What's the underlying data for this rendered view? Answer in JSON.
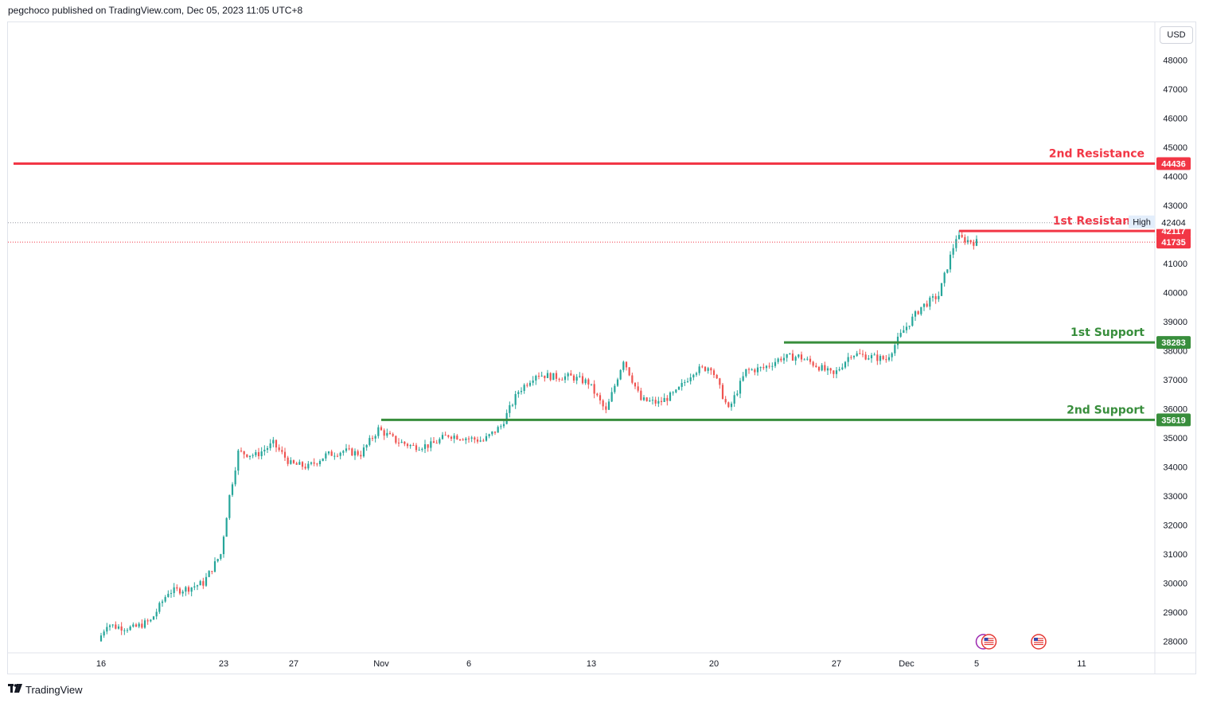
{
  "header": {
    "publisher_text": "pegchoco published on TradingView.com, Dec 05, 2023 11:05 UTC+8"
  },
  "currency_button": "USD",
  "footer": {
    "logo_text": "TradingView",
    "logo_icon": "tradingview-logo-icon"
  },
  "colors": {
    "up": "#26a69a",
    "down": "#ef5350",
    "resistance": "#f23645",
    "support": "#388e3c",
    "high_label_bg": "#e3eefb"
  },
  "chart_data": {
    "type": "candlestick",
    "title": "",
    "x_axis_ticks": [
      "16",
      "23",
      "27",
      "Nov",
      "6",
      "13",
      "20",
      "27",
      "Dec",
      "5",
      "11"
    ],
    "y_axis_ticks": [
      28000,
      29000,
      30000,
      31000,
      32000,
      33000,
      34000,
      35000,
      36000,
      37000,
      38000,
      39000,
      40000,
      41000,
      42000,
      43000,
      44000,
      45000,
      46000,
      47000,
      48000
    ],
    "ylim": [
      27600,
      49300
    ],
    "levels": [
      {
        "name": "2nd Resistance",
        "value": 44436,
        "badge": "44436",
        "kind": "resistance",
        "start_date": "2023-10-11"
      },
      {
        "name": "1st Resistance",
        "value": 42117,
        "badge": "42117",
        "kind": "resistance",
        "start_date": "2023-12-04"
      },
      {
        "name": "1st Support",
        "value": 38283,
        "badge": "38283",
        "kind": "support",
        "start_date": "2023-11-24"
      },
      {
        "name": "2nd Support",
        "value": 35619,
        "badge": "35619",
        "kind": "support",
        "start_date": "2023-11-01"
      }
    ],
    "high_marker": {
      "label": "High",
      "value": 42404,
      "display": "42404"
    },
    "last_price": {
      "value": 41735,
      "display": "41735"
    },
    "price_path": [
      {
        "date": "2023-10-16",
        "price": 28000
      },
      {
        "date": "2023-10-16",
        "price": 28600
      },
      {
        "date": "2023-10-17",
        "price": 28500
      },
      {
        "date": "2023-10-18",
        "price": 28450
      },
      {
        "date": "2023-10-19",
        "price": 28700
      },
      {
        "date": "2023-10-20",
        "price": 29700
      },
      {
        "date": "2023-10-21",
        "price": 29800
      },
      {
        "date": "2023-10-22",
        "price": 30000
      },
      {
        "date": "2023-10-23",
        "price": 31000
      },
      {
        "date": "2023-10-23",
        "price": 33000
      },
      {
        "date": "2023-10-24",
        "price": 34500
      },
      {
        "date": "2023-10-25",
        "price": 34400
      },
      {
        "date": "2023-10-26",
        "price": 34800
      },
      {
        "date": "2023-10-27",
        "price": 34100
      },
      {
        "date": "2023-10-28",
        "price": 34000
      },
      {
        "date": "2023-10-29",
        "price": 34400
      },
      {
        "date": "2023-10-30",
        "price": 34550
      },
      {
        "date": "2023-10-31",
        "price": 34450
      },
      {
        "date": "2023-11-01",
        "price": 35300
      },
      {
        "date": "2023-11-02",
        "price": 34900
      },
      {
        "date": "2023-11-03",
        "price": 34700
      },
      {
        "date": "2023-11-04",
        "price": 34750
      },
      {
        "date": "2023-11-05",
        "price": 35100
      },
      {
        "date": "2023-11-06",
        "price": 35000
      },
      {
        "date": "2023-11-07",
        "price": 34900
      },
      {
        "date": "2023-11-08",
        "price": 35400
      },
      {
        "date": "2023-11-09",
        "price": 36600
      },
      {
        "date": "2023-11-10",
        "price": 37200
      },
      {
        "date": "2023-11-11",
        "price": 37100
      },
      {
        "date": "2023-11-12",
        "price": 37100
      },
      {
        "date": "2023-11-13",
        "price": 36900
      },
      {
        "date": "2023-11-14",
        "price": 35900
      },
      {
        "date": "2023-11-15",
        "price": 37700
      },
      {
        "date": "2023-11-16",
        "price": 36300
      },
      {
        "date": "2023-11-17",
        "price": 36200
      },
      {
        "date": "2023-11-18",
        "price": 36550
      },
      {
        "date": "2023-11-19",
        "price": 37300
      },
      {
        "date": "2023-11-20",
        "price": 37450
      },
      {
        "date": "2023-11-21",
        "price": 35950
      },
      {
        "date": "2023-11-22",
        "price": 37300
      },
      {
        "date": "2023-11-23",
        "price": 37400
      },
      {
        "date": "2023-11-24",
        "price": 37750
      },
      {
        "date": "2023-11-25",
        "price": 37800
      },
      {
        "date": "2023-11-26",
        "price": 37500
      },
      {
        "date": "2023-11-27",
        "price": 37150
      },
      {
        "date": "2023-11-28",
        "price": 37900
      },
      {
        "date": "2023-11-29",
        "price": 37800
      },
      {
        "date": "2023-11-30",
        "price": 37700
      },
      {
        "date": "2023-12-01",
        "price": 38700
      },
      {
        "date": "2023-12-02",
        "price": 39500
      },
      {
        "date": "2023-12-03",
        "price": 39900
      },
      {
        "date": "2023-12-04",
        "price": 41900
      },
      {
        "date": "2023-12-05",
        "price": 41735
      }
    ],
    "event_markers": [
      {
        "date": "2023-12-05",
        "icons": [
          "economic-event-icon",
          "us-flag-icon"
        ]
      },
      {
        "date": "2023-12-08",
        "icons": [
          "us-flag-icon"
        ]
      }
    ]
  }
}
